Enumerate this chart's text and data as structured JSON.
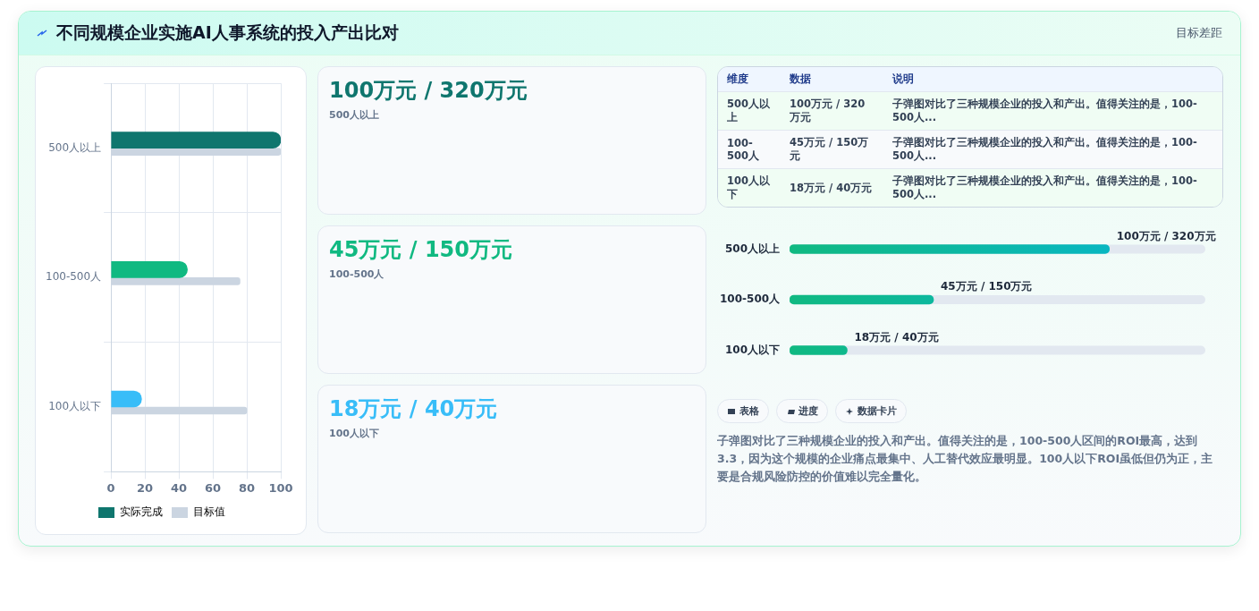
{
  "chart_data": [
    {
      "type": "other",
      "title": "不同规模企业实施AI人事系统的投入产出比对",
      "annotations": [
        "目标差距"
      ]
    },
    {
      "type": "bar",
      "orientation": "horizontal",
      "categories": [
        "500人以上",
        "100-500人",
        "100人以下"
      ],
      "series": [
        {
          "name": "实际完成",
          "colors": [
            "#0f766e",
            "#10b981",
            "#38bdf8"
          ],
          "values": [
            100,
            45,
            18
          ]
        },
        {
          "name": "目标值",
          "color": "#cbd5e1",
          "values": [
            100,
            76,
            80
          ]
        }
      ],
      "xlim": [
        0,
        100
      ],
      "xticks": [
        0,
        20,
        40,
        60,
        80,
        100
      ],
      "grid": true,
      "legend": "bottom"
    },
    {
      "type": "other",
      "title": "100万元 / 320万元",
      "subtitle": "500人以上"
    },
    {
      "type": "other",
      "title": "45万元 / 150万元",
      "subtitle": "100-500人"
    },
    {
      "type": "other",
      "title": "18万元 / 40万元",
      "subtitle": "100人以下"
    },
    {
      "type": "other",
      "categories": [
        "维度",
        "数据",
        "说明"
      ],
      "y_categories": [
        "500人以上",
        "100-500人",
        "100人以下"
      ],
      "cell_labels": [
        [
          "100万元 / 320万元",
          "子弹图对比了三种规模企业的投入和产出。值得关注的是，100-500人..."
        ],
        [
          "45万元 / 150万元",
          "子弹图对比了三种规模企业的投入和产出。值得关注的是，100-500人..."
        ],
        [
          "18万元 / 40万元",
          "子弹图对比了三种规模企业的投入和产出。值得关注的是，100-500人..."
        ]
      ]
    },
    {
      "type": "bar",
      "orientation": "horizontal",
      "categories": [
        "500人以上",
        "100-500人",
        "100人以下"
      ],
      "values": [
        100,
        45,
        18
      ],
      "xlim": [
        0,
        130
      ],
      "tick_labels": "y",
      "color": "#10b981",
      "value_labels": [
        "100万元 / 320万元",
        "45万元 / 150万元",
        "18万元 / 40万元"
      ]
    },
    {
      "type": "other",
      "annotations": [
        "表格",
        "进度",
        "数据卡片",
        "子弹图对比了三种规模企业的投入和产出。值得关注的是，100-500人区间的ROI最高，达到3.3，因为这个规模的企业痛点最集中、人工替代效应最明显。100人以下ROI虽低但仍为正，主要是合规风险防控的价值难以完全量化。"
      ]
    }
  ]
}
